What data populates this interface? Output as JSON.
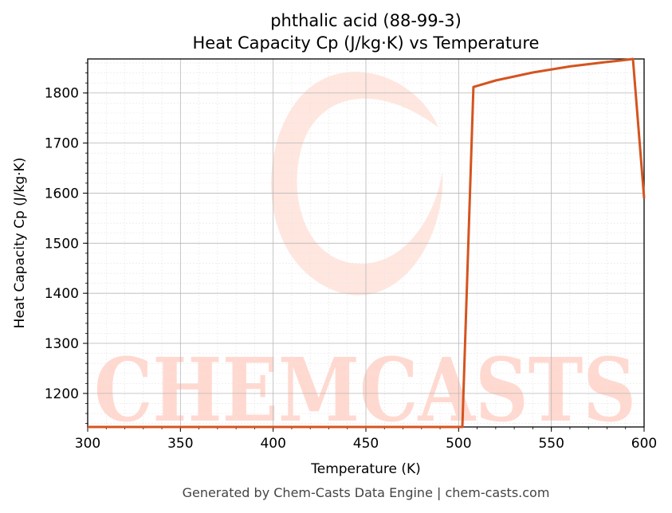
{
  "chart_data": {
    "type": "line",
    "title_line1": "phthalic acid (88-99-3)",
    "title_line2": "Heat Capacity Cp (J/kg·K) vs Temperature",
    "xlabel": "Temperature (K)",
    "ylabel": "Heat Capacity Cp (J/kg·K)",
    "xlim": [
      300,
      600
    ],
    "ylim": [
      1133,
      1868
    ],
    "xticks": [
      300,
      350,
      400,
      450,
      500,
      550,
      600
    ],
    "yticks": [
      1200,
      1300,
      1400,
      1500,
      1600,
      1700,
      1800
    ],
    "grid": true,
    "series": [
      {
        "color": "#d4541f",
        "x": [
          300,
          400,
          500,
          502,
          508,
          520,
          540,
          560,
          580,
          590,
          594,
          600
        ],
        "y": [
          1133,
          1133,
          1133,
          1133,
          1812,
          1825,
          1841,
          1853,
          1862,
          1866,
          1868,
          1590
        ]
      }
    ]
  },
  "watermark": {
    "text": "CHEMCASTS"
  },
  "footer": "Generated by Chem-Casts Data Engine | chem-casts.com"
}
